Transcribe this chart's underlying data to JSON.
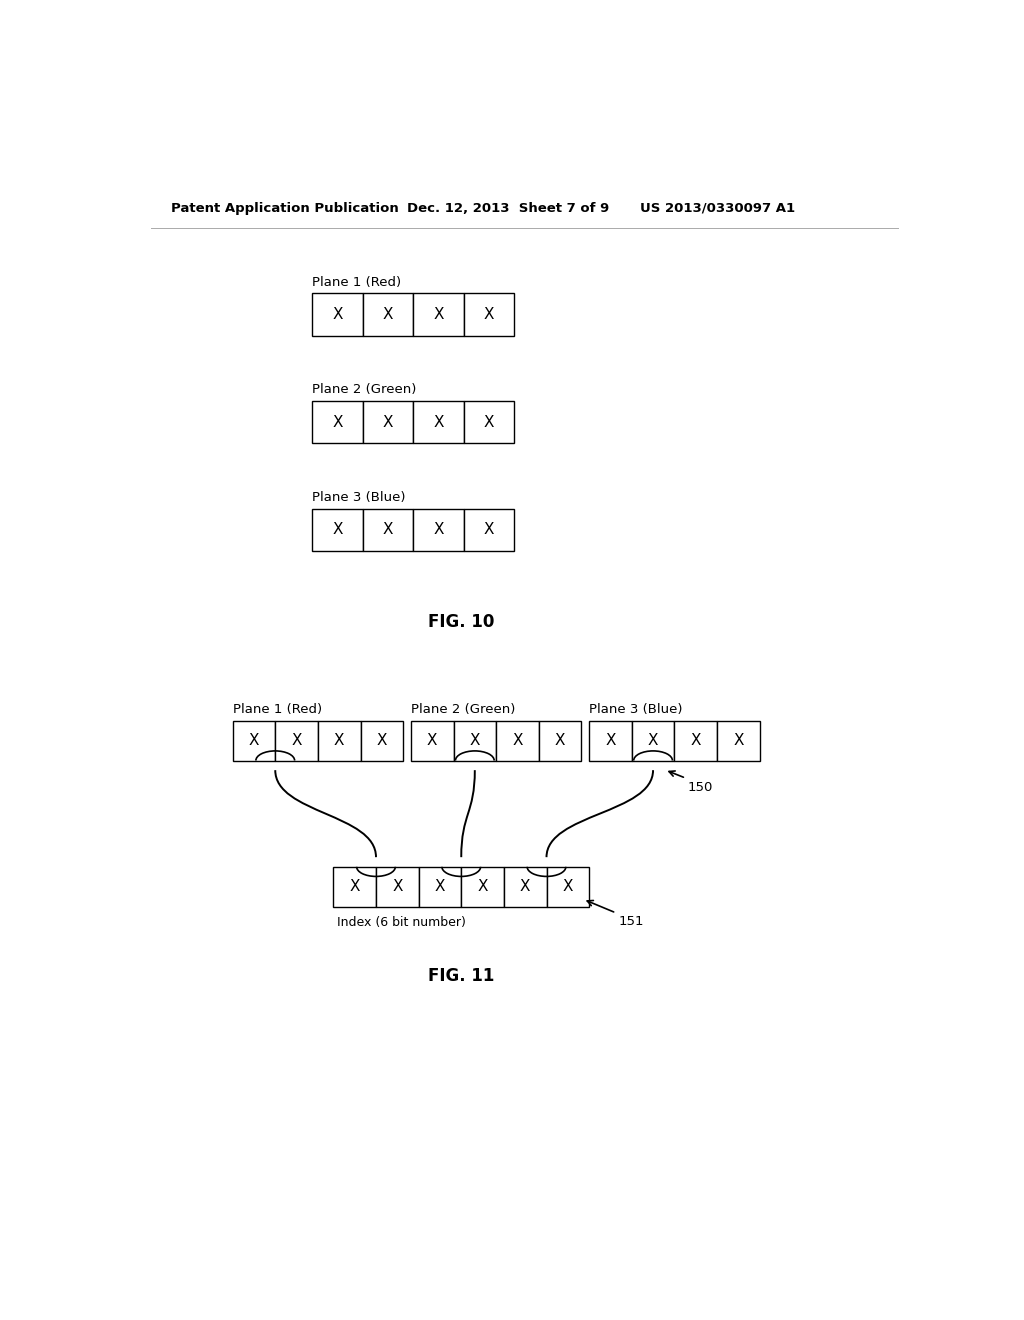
{
  "header_left": "Patent Application Publication",
  "header_center": "Dec. 12, 2013  Sheet 7 of 9",
  "header_right": "US 2013/0330097 A1",
  "fig10_label": "FIG. 10",
  "fig11_label": "FIG. 11",
  "plane_labels_fig10": [
    "Plane 1 (Red)",
    "Plane 2 (Green)",
    "Plane 3 (Blue)"
  ],
  "plane_labels_fig11": [
    "Plane 1 (Red)",
    "Plane 2 (Green)",
    "Plane 3 (Blue)"
  ],
  "cell_content": "X",
  "bottom_label": "Index (6 bit number)",
  "ref_150": "150",
  "ref_151": "151",
  "bg_color": "#ffffff",
  "box_color": "#000000",
  "text_color": "#000000",
  "font_size_header": 9.5,
  "font_size_label": 9.5,
  "font_size_cell": 11,
  "font_size_fig": 12,
  "font_size_ref": 9.5
}
